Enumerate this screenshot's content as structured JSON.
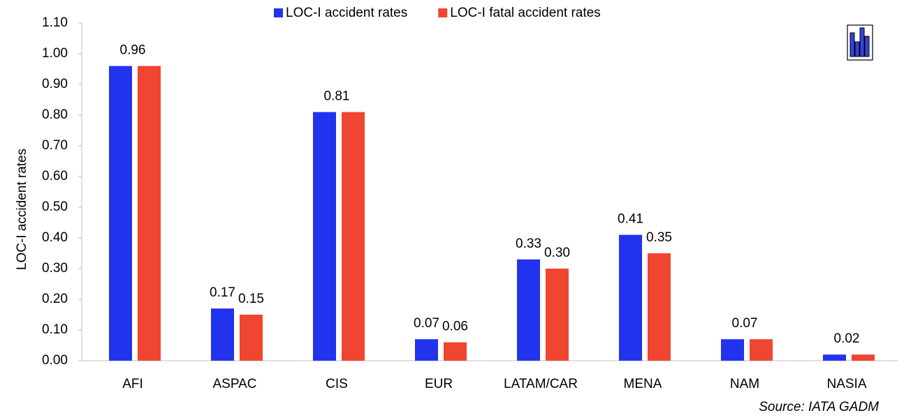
{
  "chart_data": {
    "type": "bar",
    "y_label": "LOC-I accident rates",
    "source": "Source: IATA GADM",
    "categories": [
      "AFI",
      "ASPAC",
      "CIS",
      "EUR",
      "LATAM/CAR",
      "MENA",
      "NAM",
      "NASIA"
    ],
    "series": [
      {
        "name": "LOC-I accident rates",
        "color": "#2233ee",
        "values": [
          0.96,
          0.17,
          0.81,
          0.07,
          0.33,
          0.41,
          0.07,
          0.02
        ],
        "value_labels": [
          null,
          "0.17",
          null,
          "0.07",
          "0.33",
          "0.41",
          null,
          null
        ]
      },
      {
        "name": "LOC-I fatal accident rates",
        "color": "#f04530",
        "values": [
          0.96,
          0.15,
          0.81,
          0.06,
          0.3,
          0.35,
          0.07,
          0.02
        ],
        "value_labels": [
          "0.96",
          "0.15",
          "0.81",
          "0.06",
          "0.30",
          "0.35",
          "0.07",
          "0.02"
        ]
      }
    ],
    "ylim": [
      0,
      1.1
    ],
    "yticks": [
      {
        "value": 0,
        "label": "0.00"
      },
      {
        "value": 0.1,
        "label": "0.10"
      },
      {
        "value": 0.2,
        "label": "0.20"
      },
      {
        "value": 0.3,
        "label": "0.30"
      },
      {
        "value": 0.4,
        "label": "0.40"
      },
      {
        "value": 0.5,
        "label": "0.50"
      },
      {
        "value": 0.6,
        "label": "0.60"
      },
      {
        "value": 0.7,
        "label": "0.70"
      },
      {
        "value": 0.8,
        "label": "0.80"
      },
      {
        "value": 0.9,
        "label": "0.90"
      },
      {
        "value": 1.0,
        "label": "1.00"
      },
      {
        "value": 1.1,
        "label": "1.10"
      }
    ],
    "grid": false,
    "legend": "top"
  }
}
